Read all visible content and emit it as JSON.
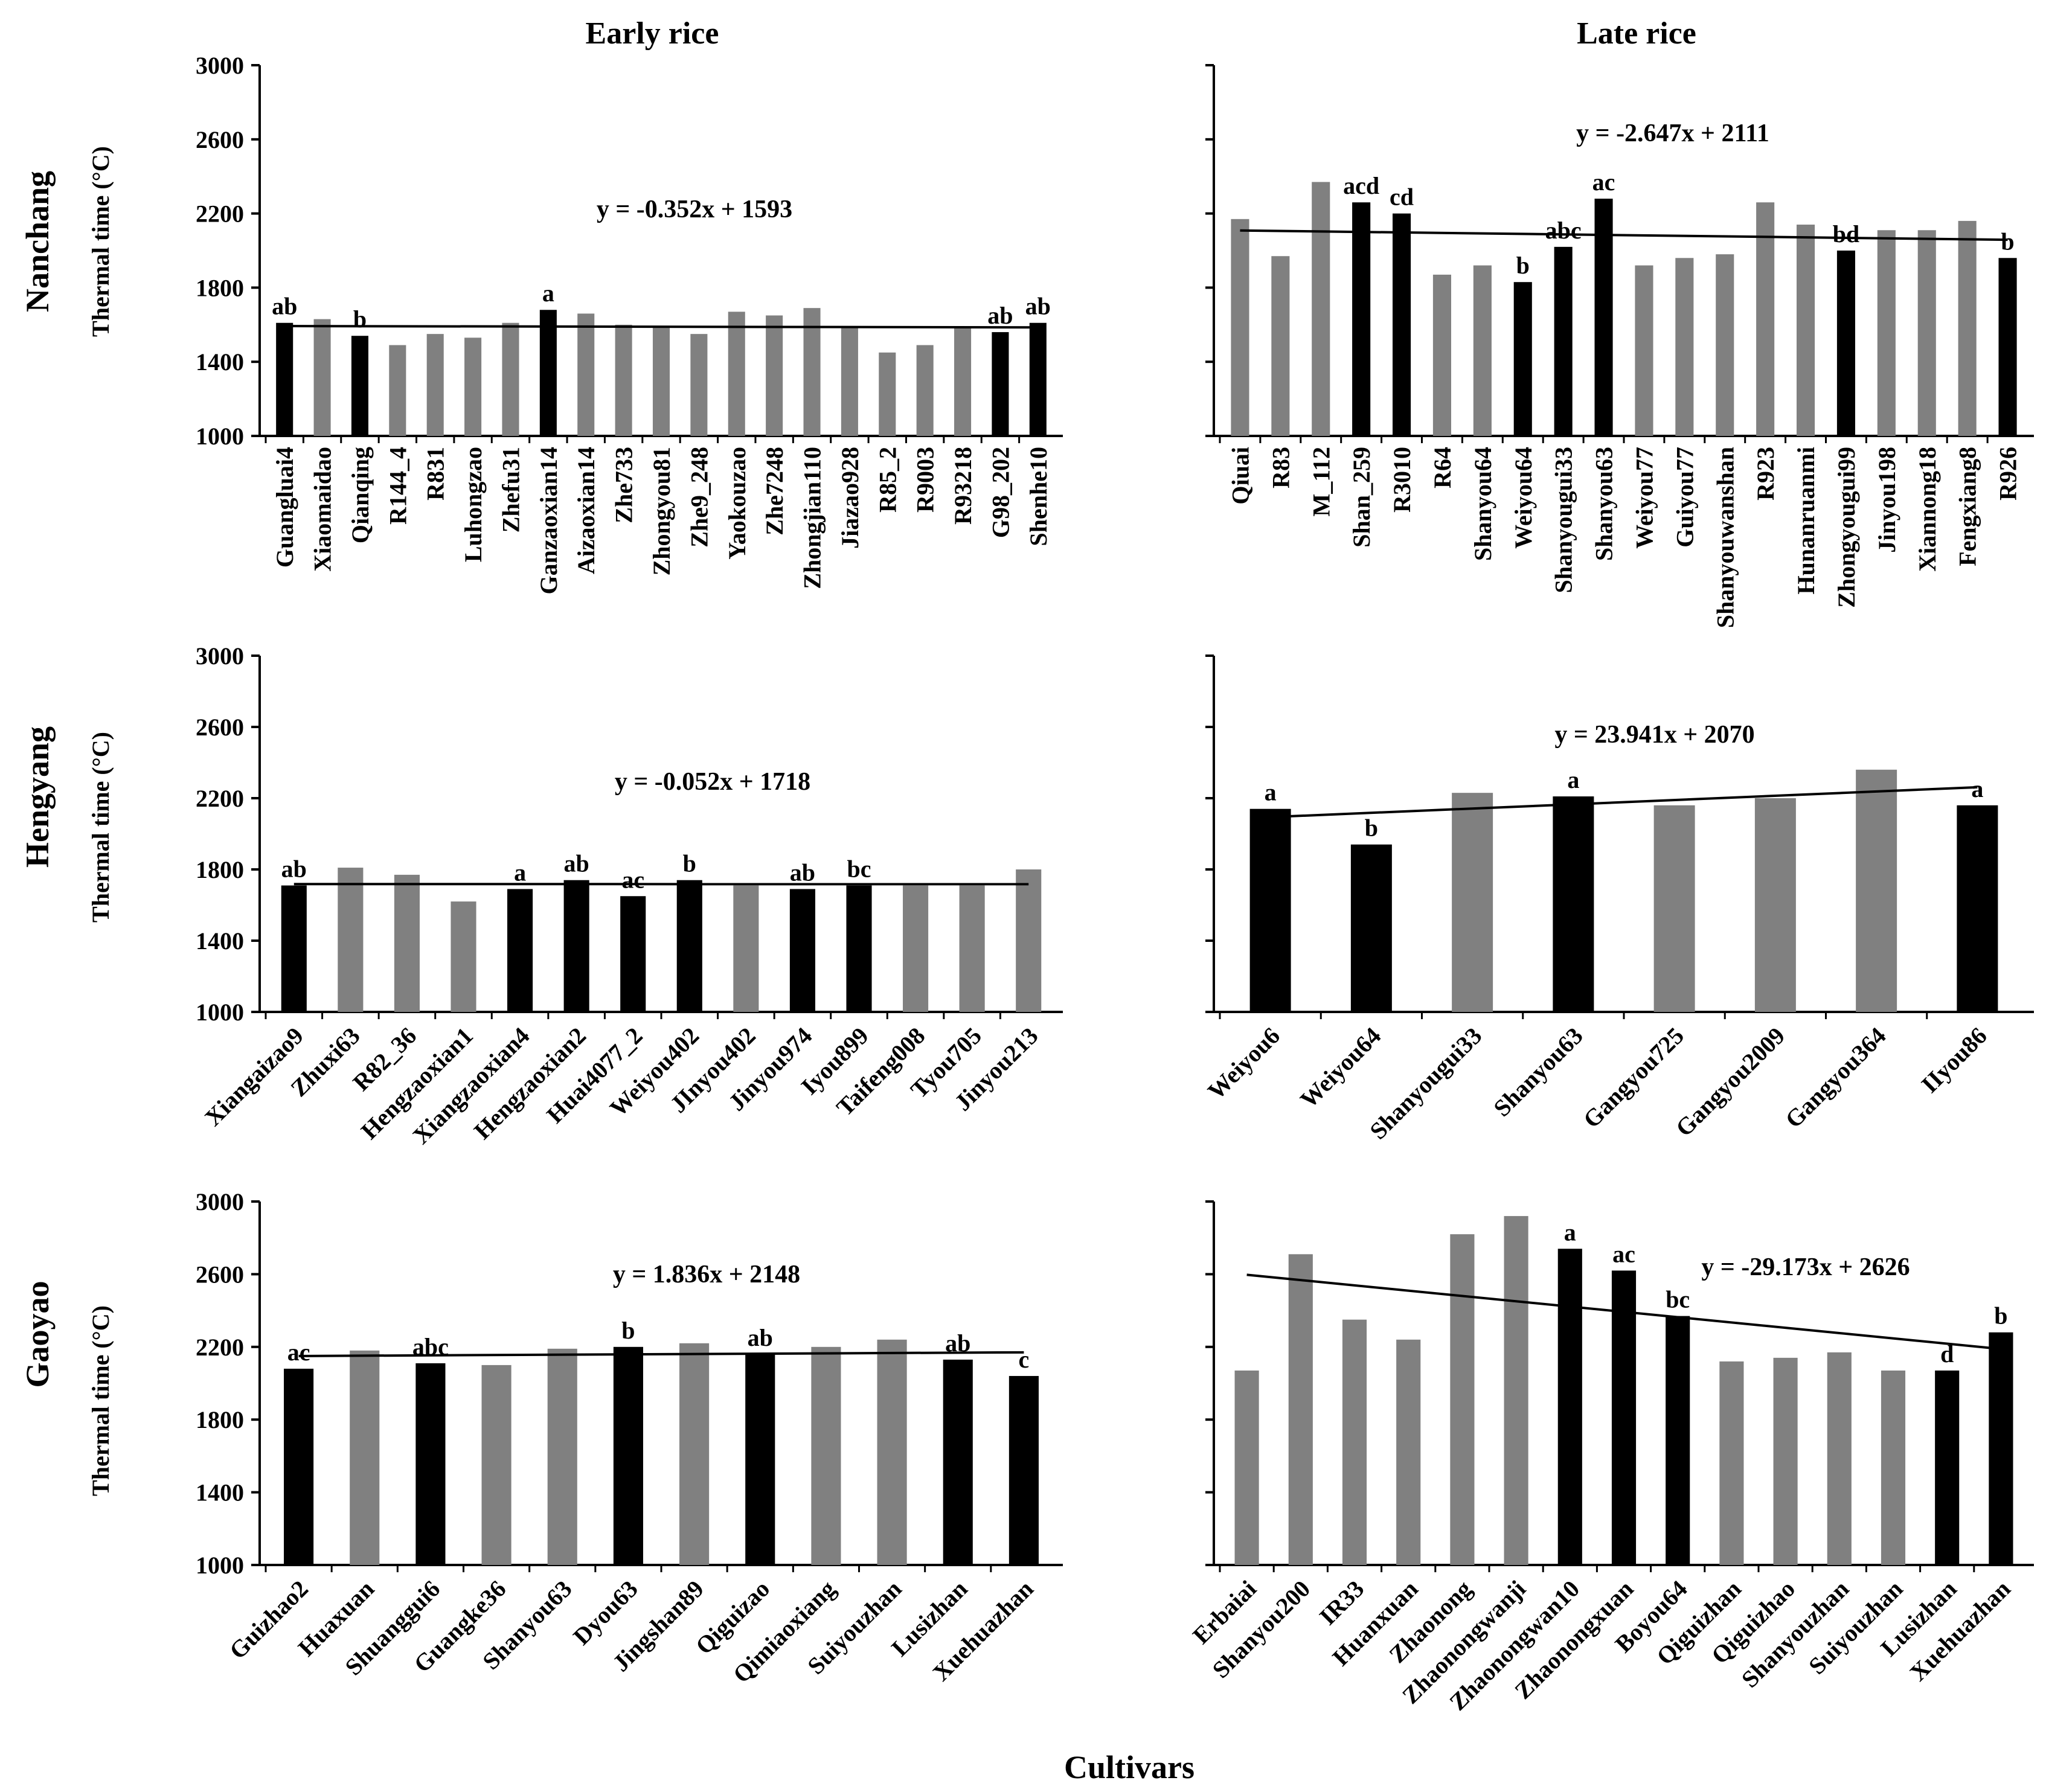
{
  "figure": {
    "col_titles": [
      "Early rice",
      "Late rice"
    ],
    "row_titles": [
      "Nanchang",
      "Hengyang",
      "Gaoyao"
    ],
    "ylabel": "Thermal time (°C)",
    "xlabel": "Cultivars",
    "colors": {
      "black": "#000000",
      "gray": "#808080"
    }
  },
  "chart_data": [
    {
      "type": "bar",
      "panel": "Nanchang - Early rice",
      "ylabel": "Thermal time (°C)",
      "ylim": [
        1000,
        3000
      ],
      "yticks": [
        1000,
        1400,
        1800,
        2200,
        2600,
        3000
      ],
      "categories": [
        "Guangluai4",
        "Xiaomaidao",
        "Qianqing",
        "R144_4",
        "R831",
        "Luhongzao",
        "Zhefu31",
        "Ganzaoxian14",
        "Aizaoxian14",
        "Zhe733",
        "Zhongyou81",
        "Zhe9_248",
        "Yaokouzao",
        "Zhe7248",
        "Zhongjian110",
        "Jiazao928",
        "R85_2",
        "R9003",
        "R93218",
        "G98_202",
        "Shenhe10"
      ],
      "values": [
        1610,
        1630,
        1540,
        1490,
        1550,
        1530,
        1610,
        1680,
        1660,
        1600,
        1590,
        1550,
        1670,
        1650,
        1690,
        1590,
        1450,
        1490,
        1590,
        1560,
        1610
      ],
      "highlight": [
        true,
        false,
        true,
        false,
        false,
        false,
        false,
        true,
        false,
        false,
        false,
        false,
        false,
        false,
        false,
        false,
        false,
        false,
        false,
        true,
        true
      ],
      "letters": [
        "ab",
        "",
        "b",
        "",
        "",
        "",
        "",
        "a",
        "",
        "",
        "",
        "",
        "",
        "",
        "",
        "",
        "",
        "",
        "",
        "ab",
        "ab"
      ],
      "equation": "y = -0.352x + 1593",
      "trend": {
        "slope": -0.352,
        "intercept": 1593
      }
    },
    {
      "type": "bar",
      "panel": "Nanchang - Late rice",
      "ylim": [
        1000,
        3000
      ],
      "categories": [
        "Qiuai",
        "R83",
        "M_112",
        "Shan_259",
        "R3010",
        "R64",
        "Shanyou64",
        "Weiyou64",
        "Shanyougui33",
        "Shanyou63",
        "Weiyou77",
        "Guiyou77",
        "Shanyouwanshan",
        "R923",
        "Hunanruanmi",
        "Zhongyougui99",
        "Jinyou198",
        "Xiannong18",
        "Fengxiang8",
        "R926"
      ],
      "values": [
        2170,
        1970,
        2370,
        2260,
        2200,
        1870,
        1920,
        1830,
        2020,
        2280,
        1920,
        1960,
        1980,
        2260,
        2140,
        2000,
        2110,
        2110,
        2160,
        1960
      ],
      "highlight": [
        false,
        false,
        false,
        true,
        true,
        false,
        false,
        true,
        true,
        true,
        false,
        false,
        false,
        false,
        false,
        true,
        false,
        false,
        false,
        true
      ],
      "letters": [
        "",
        "",
        "",
        "acd",
        "cd",
        "",
        "",
        "b",
        "abc",
        "ac",
        "",
        "",
        "",
        "",
        "",
        "bd",
        "",
        "",
        "",
        "b"
      ],
      "equation": "y = -2.647x + 2111",
      "trend": {
        "slope": -2.647,
        "intercept": 2111
      }
    },
    {
      "type": "bar",
      "panel": "Hengyang - Early rice",
      "ylim": [
        1000,
        3000
      ],
      "categories": [
        "Xiangaizao9",
        "Zhuxi63",
        "R82_36",
        "Hengzaoxian1",
        "Xiangzaoxian4",
        "Hengzaoxian2",
        "Huai4077_2",
        "Weiyou402",
        "JInyou402",
        "Jinyou974",
        "Iyou899",
        "Taifeng008",
        "Tyou705",
        "Jinyou213"
      ],
      "values": [
        1710,
        1810,
        1770,
        1620,
        1690,
        1740,
        1650,
        1740,
        1710,
        1690,
        1710,
        1710,
        1710,
        1800
      ],
      "highlight": [
        true,
        false,
        false,
        false,
        true,
        true,
        true,
        true,
        false,
        true,
        true,
        false,
        false,
        false
      ],
      "letters": [
        "ab",
        "",
        "",
        "",
        "a",
        "ab",
        "ac",
        "b",
        "",
        "ab",
        "bc",
        "",
        "",
        ""
      ],
      "equation": "y = -0.052x + 1718",
      "trend": {
        "slope": -0.052,
        "intercept": 1718
      }
    },
    {
      "type": "bar",
      "panel": "Hengyang - Late rice",
      "ylim": [
        1000,
        3000
      ],
      "categories": [
        "Weiyou6",
        "Weiyou64",
        "Shanyougui33",
        "Shanyou63",
        "Gangyou725",
        "Gangyou2009",
        "Gangyou364",
        "IIyou86"
      ],
      "values": [
        2140,
        1940,
        2230,
        2210,
        2160,
        2200,
        2360,
        2160
      ],
      "highlight": [
        true,
        true,
        false,
        true,
        false,
        false,
        false,
        true
      ],
      "letters": [
        "a",
        "b",
        "",
        "a",
        "",
        "",
        "",
        "a"
      ],
      "equation": "y = 23.941x + 2070",
      "trend": {
        "slope": 23.941,
        "intercept": 2070
      }
    },
    {
      "type": "bar",
      "panel": "Gaoyao - Early rice",
      "ylim": [
        1000,
        3000
      ],
      "categories": [
        "Guizhao2",
        "Huaxuan",
        "Shuanggui6",
        "Guangke36",
        "Shanyou63",
        "Dyou63",
        "Jingshan89",
        "Qiguizao",
        "Qimiaoxiang",
        "Suiyouzhan",
        "Lusizhan",
        "Xuehuazhan"
      ],
      "values": [
        2080,
        2180,
        2110,
        2100,
        2190,
        2200,
        2220,
        2160,
        2200,
        2240,
        2130,
        2040
      ],
      "highlight": [
        true,
        false,
        true,
        false,
        false,
        true,
        false,
        true,
        false,
        false,
        true,
        true
      ],
      "letters": [
        "ac",
        "",
        "abc",
        "",
        "",
        "b",
        "",
        "ab",
        "",
        "",
        "ab",
        "c"
      ],
      "equation": "y = 1.836x + 2148",
      "trend": {
        "slope": 1.836,
        "intercept": 2148
      }
    },
    {
      "type": "bar",
      "panel": "Gaoyao - Late rice",
      "ylim": [
        1000,
        3000
      ],
      "categories": [
        "Erbaiai",
        "Shanyou200",
        "IR33",
        "Huanxuan",
        "Zhaonong",
        "Zhaonongwanji",
        "Zhaonongwan10",
        "Zhaonongxuan",
        "Boyou64",
        "Qiguizhan",
        "Qiguizhao",
        "Shanyouzhan",
        "Suiyouzhan",
        "Lusizhan",
        "Xuehuazhan"
      ],
      "values": [
        2070,
        2710,
        2350,
        2240,
        2820,
        2920,
        2740,
        2620,
        2370,
        2120,
        2140,
        2170,
        2070,
        2070,
        2280
      ],
      "highlight": [
        false,
        false,
        false,
        false,
        false,
        false,
        true,
        true,
        true,
        false,
        false,
        false,
        false,
        true,
        true
      ],
      "letters": [
        "",
        "",
        "",
        "",
        "",
        "",
        "a",
        "ac",
        "bc",
        "",
        "",
        "",
        "",
        "d",
        "b"
      ],
      "equation": "y = -29.173x + 2626",
      "trend": {
        "slope": -29.173,
        "intercept": 2626
      }
    }
  ]
}
